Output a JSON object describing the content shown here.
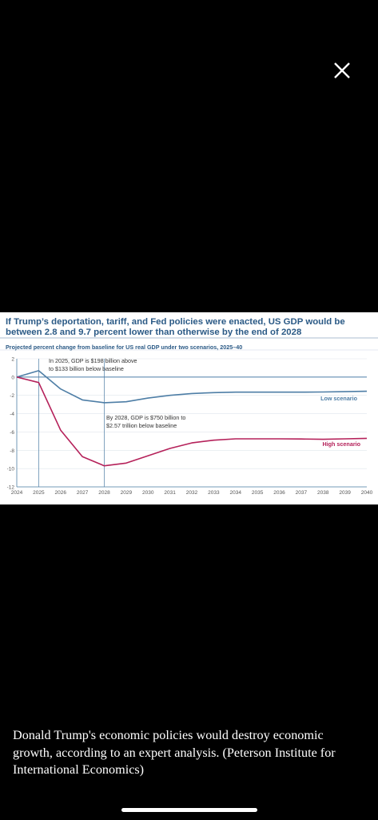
{
  "close_icon": "close-icon",
  "caption": "Donald Trump's economic policies would destroy economic growth, according to an expert analysis. (Peterson Institute for International Economics)",
  "chart_data": {
    "type": "line",
    "title": "If Trump’s deportation, tariff, and Fed policies were enacted, US GDP would be between 2.8 and 9.7 percent lower than otherwise by the end of 2028",
    "subtitle": "Projected percent change from baseline for US real GDP under two scenarios, 2025–40",
    "xlabel": "",
    "ylabel": "",
    "x": [
      2024,
      2025,
      2026,
      2027,
      2028,
      2029,
      2030,
      2031,
      2032,
      2033,
      2034,
      2035,
      2036,
      2037,
      2038,
      2039,
      2040
    ],
    "xlim": [
      2024,
      2040
    ],
    "ylim": [
      -12,
      2
    ],
    "yticks": [
      2,
      0,
      -2,
      -4,
      -6,
      -8,
      -10,
      -12
    ],
    "grid": "horizontal",
    "series": [
      {
        "name": "Low scenario",
        "color": "#4e7ea6",
        "values": [
          0,
          0.7,
          -1.3,
          -2.5,
          -2.8,
          -2.7,
          -2.3,
          -2.0,
          -1.8,
          -1.7,
          -1.65,
          -1.65,
          -1.65,
          -1.65,
          -1.63,
          -1.6,
          -1.55
        ]
      },
      {
        "name": "High scenario",
        "color": "#b5215a",
        "values": [
          0,
          -0.6,
          -5.8,
          -8.7,
          -9.7,
          -9.4,
          -8.6,
          -7.8,
          -7.2,
          -6.9,
          -6.75,
          -6.75,
          -6.75,
          -6.77,
          -6.8,
          -6.75,
          -6.7
        ]
      }
    ],
    "annotations": [
      {
        "text_lines": [
          "In 2025, GDP is $198 billion above",
          "to $133 billion below baseline"
        ],
        "x": 2025
      },
      {
        "text_lines": [
          "By 2028, GDP is $750 billion to",
          "$2.57 trillion below baseline"
        ],
        "x": 2028
      }
    ]
  }
}
